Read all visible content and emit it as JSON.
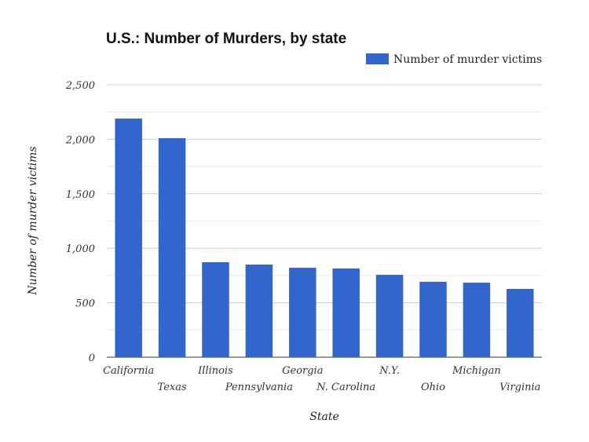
{
  "chart_data": {
    "type": "bar",
    "title": "U.S.: Number of Murders, by state",
    "xlabel": "State",
    "ylabel": "Number of murder victims",
    "categories": [
      "California",
      "Texas",
      "Illinois",
      "Pennsylvania",
      "Georgia",
      "N. Carolina",
      "N.Y.",
      "Ohio",
      "Michigan",
      "Virginia"
    ],
    "series": [
      {
        "name": "Number of murder victims",
        "values": [
          2190,
          2010,
          872,
          850,
          821,
          814,
          756,
          692,
          684,
          627
        ]
      }
    ],
    "ylim": [
      0,
      2500
    ],
    "yticks": [
      0,
      500,
      1000,
      1500,
      2000,
      2500
    ],
    "ytick_labels": [
      "0",
      "500",
      "1,000",
      "1,500",
      "2,000",
      "2,500"
    ],
    "grid": true,
    "legend_position": "top-right",
    "colors": {
      "bar": "#3366cc"
    }
  }
}
